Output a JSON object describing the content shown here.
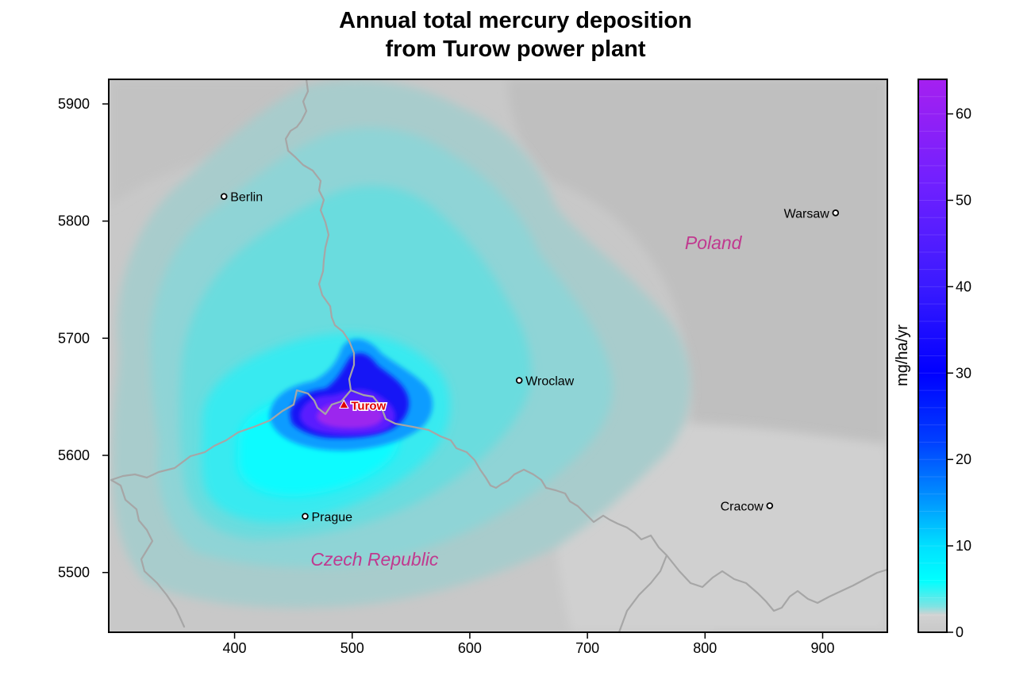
{
  "title": {
    "line1": "Annual total mercury deposition",
    "line2": "from Turow power plant"
  },
  "map": {
    "x_ticks": [
      400,
      500,
      600,
      700,
      800,
      900
    ],
    "y_ticks": [
      5500,
      5600,
      5700,
      5800,
      5900
    ],
    "xlim": [
      293,
      955
    ],
    "ylim": [
      5449,
      5921
    ],
    "background_color": "#c8c8c8",
    "border_color": "#a6a6a6",
    "cities": [
      {
        "name": "Berlin",
        "x": 391,
        "y": 5821,
        "label_side": "right"
      },
      {
        "name": "Warsaw",
        "x": 911,
        "y": 5807,
        "label_side": "left"
      },
      {
        "name": "Wroclaw",
        "x": 642,
        "y": 5664,
        "label_side": "right"
      },
      {
        "name": "Prague",
        "x": 460,
        "y": 5548,
        "label_side": "right"
      },
      {
        "name": "Cracow",
        "x": 855,
        "y": 5557,
        "label_side": "left"
      }
    ],
    "plant": {
      "name": "Turow",
      "x": 493,
      "y": 5643,
      "color": "#e00000"
    },
    "countries": [
      {
        "name": "Poland",
        "x": 807,
        "y": 5776
      },
      {
        "name": "Czech Republic",
        "x": 519,
        "y": 5506
      }
    ]
  },
  "colorbar": {
    "label": "mg/ha/yr",
    "ticks": [
      0,
      10,
      20,
      30,
      40,
      50,
      60
    ],
    "min": 0,
    "max": 64,
    "stops": [
      {
        "v": 0,
        "c": "#c8c8c8"
      },
      {
        "v": 2,
        "c": "#d2d2d2"
      },
      {
        "v": 3,
        "c": "#7fe3e3"
      },
      {
        "v": 6,
        "c": "#00ffff"
      },
      {
        "v": 10,
        "c": "#00e0ff"
      },
      {
        "v": 15,
        "c": "#0099ff"
      },
      {
        "v": 22,
        "c": "#0040ff"
      },
      {
        "v": 30,
        "c": "#0000ff"
      },
      {
        "v": 40,
        "c": "#3a1aff"
      },
      {
        "v": 52,
        "c": "#7020ff"
      },
      {
        "v": 64,
        "c": "#a520f0"
      }
    ]
  }
}
